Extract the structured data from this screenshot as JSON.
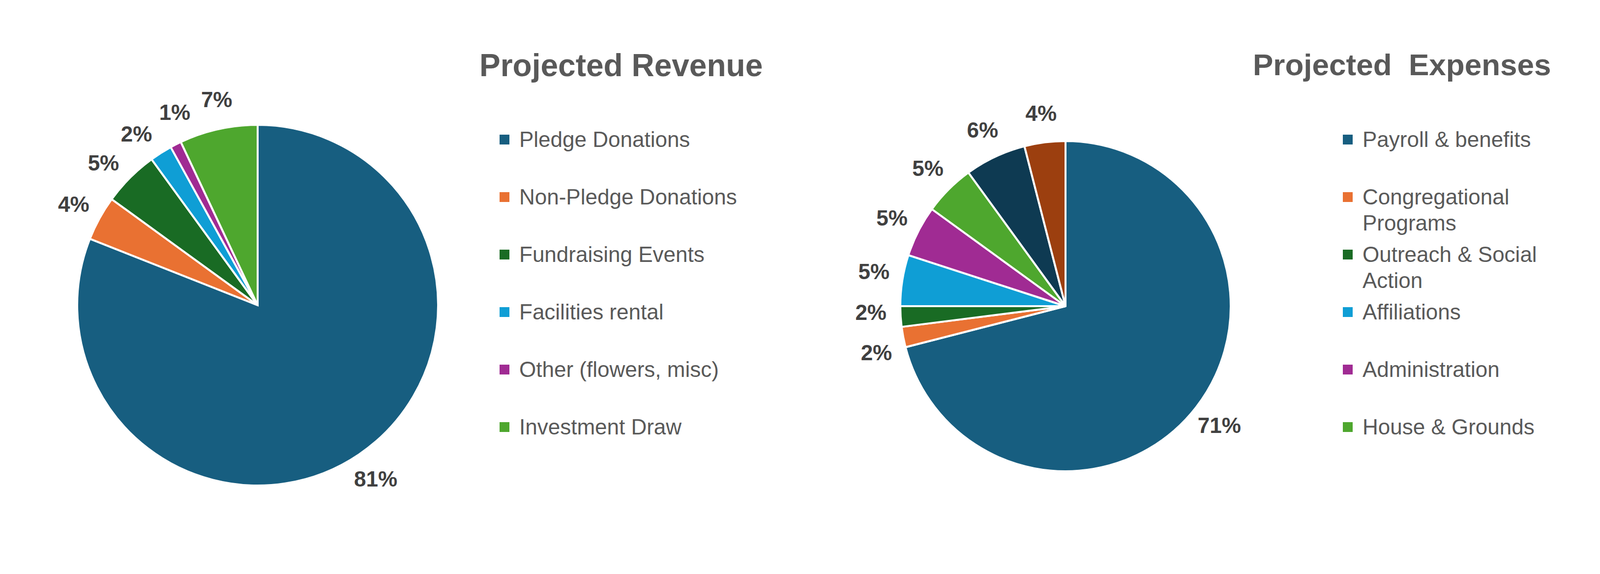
{
  "chart_data": [
    {
      "type": "pie",
      "title": "Projected Revenue",
      "categories": [
        "Pledge Donations",
        "Non-Pledge Donations",
        "Fundraising Events",
        "Facilities rental",
        "Other (flowers, misc)",
        "Investment Draw"
      ],
      "values": [
        81,
        4,
        5,
        2,
        1,
        7
      ],
      "value_labels": [
        "81%",
        "4%",
        "5%",
        "2%",
        "1%",
        "7%"
      ],
      "colors": [
        "#175e80",
        "#e97132",
        "#196b24",
        "#0f9ed5",
        "#a02b93",
        "#4ea72e"
      ],
      "data_labels": true,
      "legend": "right"
    },
    {
      "type": "pie",
      "title": "Projected  Expenses",
      "categories": [
        "Payroll & benefits",
        "Congregational Programs",
        "Outreach & Social Action",
        "Affiliations",
        "Administration",
        "House & Grounds",
        null,
        null
      ],
      "values": [
        71,
        2,
        2,
        5,
        5,
        5,
        6,
        4
      ],
      "value_labels": [
        "71%",
        "2%",
        "2%",
        "5%",
        "5%",
        "5%",
        "6%",
        "4%"
      ],
      "colors": [
        "#175e80",
        "#e97132",
        "#196b24",
        "#0f9ed5",
        "#a02b93",
        "#4ea72e",
        "#0e3a52",
        "#9c3f0f"
      ],
      "data_labels": true,
      "legend": "right"
    }
  ]
}
